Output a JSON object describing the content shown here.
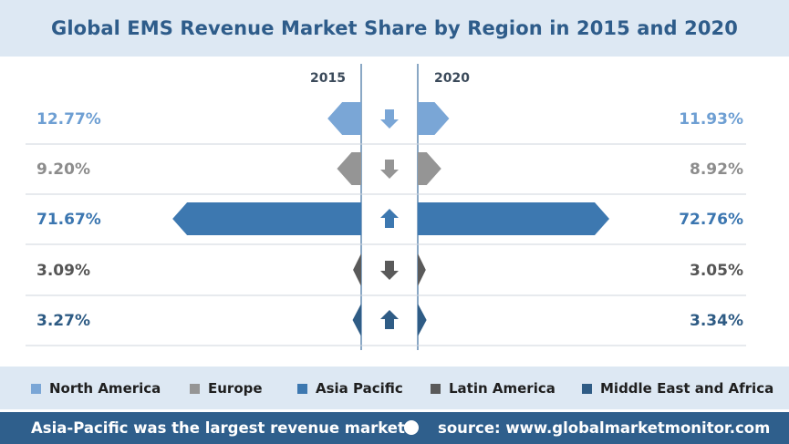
{
  "title": "Global EMS Revenue Market Share by Region in 2015 and 2020",
  "chart_data": {
    "type": "bar",
    "title": "Global EMS Revenue Market Share by Region in 2015 and 2020",
    "categories": [
      "North America",
      "Europe",
      "Asia Pacific",
      "Latin America",
      "Middle East and Africa"
    ],
    "left_label": "2015",
    "right_label": "2020",
    "series": [
      {
        "name": "2015",
        "values": [
          12.77,
          9.2,
          71.67,
          3.09,
          3.27
        ],
        "labels": [
          "12.77%",
          "9.20%",
          "71.67%",
          "3.09%",
          "3.27%"
        ]
      },
      {
        "name": "2020",
        "values": [
          11.93,
          8.92,
          72.76,
          3.05,
          3.34
        ],
        "labels": [
          "11.93%",
          "8.92%",
          "72.76%",
          "3.05%",
          "3.34%"
        ]
      }
    ],
    "trend": [
      "down",
      "down",
      "up",
      "down",
      "up"
    ],
    "colors": [
      "#7aa6d6",
      "#959595",
      "#3d78b0",
      "#5a5a5a",
      "#2f5c85"
    ],
    "value_text_colors": [
      "#6e9fd3",
      "#8c8c8c",
      "#3b76b0",
      "#555555",
      "#2e5b84"
    ],
    "unit": "%"
  },
  "legend": [
    {
      "label": "North America",
      "color": "#7aa6d6"
    },
    {
      "label": "Europe",
      "color": "#959595"
    },
    {
      "label": "Asia Pacific",
      "color": "#3d78b0"
    },
    {
      "label": "Latin America",
      "color": "#5a5a5a"
    },
    {
      "label": "Middle East and Africa",
      "color": "#2f5c85"
    }
  ],
  "footer": {
    "left": "Asia-Pacific was the largest revenue market",
    "right": "source: www.globalmarketmonitor.com"
  }
}
